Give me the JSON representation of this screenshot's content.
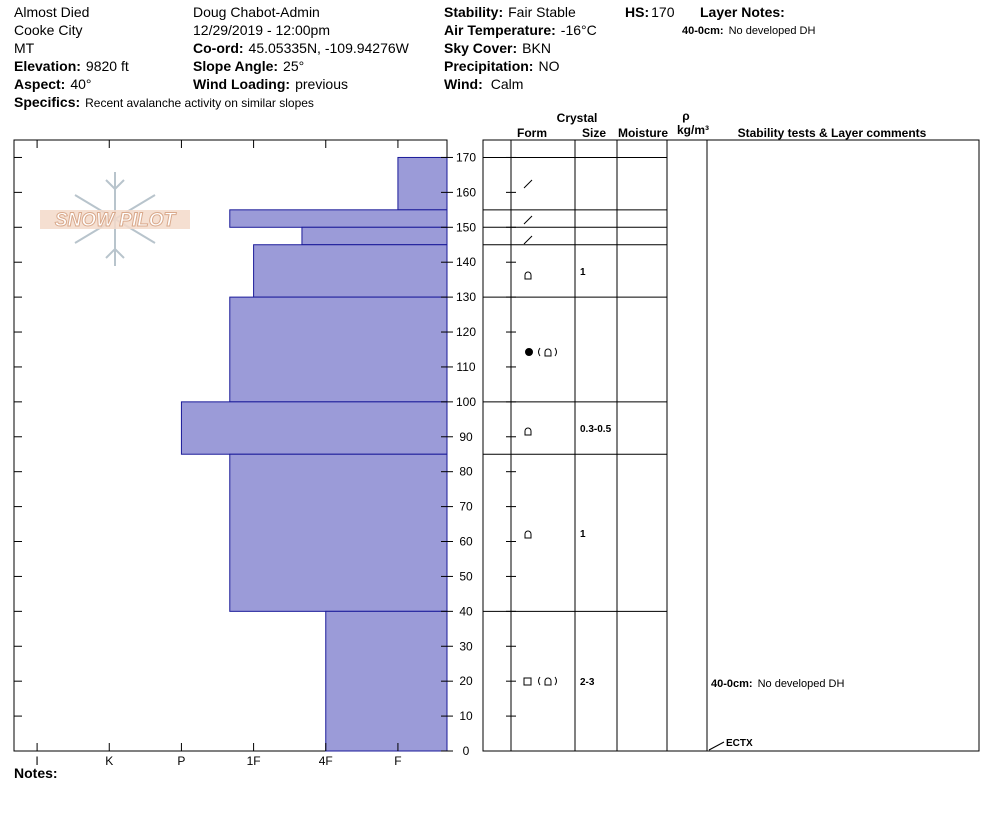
{
  "header": {
    "location": [
      "Almost Died",
      "Cooke City",
      "MT"
    ],
    "observer": "Doug Chabot-Admin",
    "date": "12/29/2019 - 12:00pm",
    "elevation": {
      "label": "Elevation:",
      "value": "9820 ft"
    },
    "aspect": {
      "label": "Aspect:",
      "value": "40°"
    },
    "specifics": {
      "label": "Specifics:",
      "value": "Recent avalanche activity on similar slopes"
    },
    "coord": {
      "label": "Co-ord:",
      "value": "45.05335N, -109.94276W"
    },
    "slope_angle": {
      "label": "Slope Angle:",
      "value": "25°"
    },
    "wind_loading": {
      "label": "Wind Loading:",
      "value": "previous"
    },
    "stability": {
      "label": "Stability:",
      "value": "Fair Stable"
    },
    "air_temperature": {
      "label": "Air Temperature:",
      "value": "-16°C"
    },
    "sky_cover": {
      "label": "Sky Cover:",
      "value": "BKN"
    },
    "precipitation": {
      "label": "Precipitation:",
      "value": "NO"
    },
    "wind": {
      "label": "Wind:",
      "value": "Calm"
    },
    "hs": {
      "label": "HS:",
      "value": "170"
    },
    "layer_notes": {
      "label": "Layer Notes:",
      "range": "40-0cm:",
      "note": "No developed DH"
    }
  },
  "logo": "SNOW PILOT",
  "table_headers": {
    "crystal": "Crystal",
    "form": "Form",
    "size": "Size",
    "moisture": "Moisture",
    "rho": "ρ",
    "density_unit": "kg/m³",
    "comments": "Stability tests & Layer comments"
  },
  "notes_label": "Notes:",
  "chart_data": {
    "type": "bar",
    "xlim": [
      6.32,
      0.32
    ],
    "xticks": [
      {
        "value": 6,
        "label": "I"
      },
      {
        "value": 5,
        "label": "K"
      },
      {
        "value": 4,
        "label": "P"
      },
      {
        "value": 3,
        "label": "1F"
      },
      {
        "value": 2,
        "label": "4F"
      },
      {
        "value": 1,
        "label": "F"
      }
    ],
    "ylim": [
      0,
      175
    ],
    "yticks": [
      0,
      10,
      20,
      30,
      40,
      50,
      60,
      70,
      80,
      90,
      100,
      110,
      120,
      130,
      140,
      150,
      160,
      170
    ],
    "color": "#9b9bd8",
    "layers": [
      {
        "top": 170,
        "bottom": 155,
        "hardness": 1
      },
      {
        "top": 155,
        "bottom": 150,
        "hardness": 3.33
      },
      {
        "top": 150,
        "bottom": 145,
        "hardness": 2.33
      },
      {
        "top": 145,
        "bottom": 130,
        "hardness": 3,
        "grain_size": "1"
      },
      {
        "top": 130,
        "bottom": 100,
        "hardness": 3.33
      },
      {
        "top": 100,
        "bottom": 85,
        "hardness": 4,
        "grain_size": "0.3-0.5"
      },
      {
        "top": 85,
        "bottom": 40,
        "hardness": 3.33,
        "grain_size": "1"
      },
      {
        "top": 40,
        "bottom": 0,
        "hardness": 2,
        "grain_size": "2-3",
        "comment_range": "40-0cm:",
        "comment": "No developed DH"
      }
    ],
    "stability_test": {
      "height": 0,
      "label": "ECTX"
    }
  }
}
